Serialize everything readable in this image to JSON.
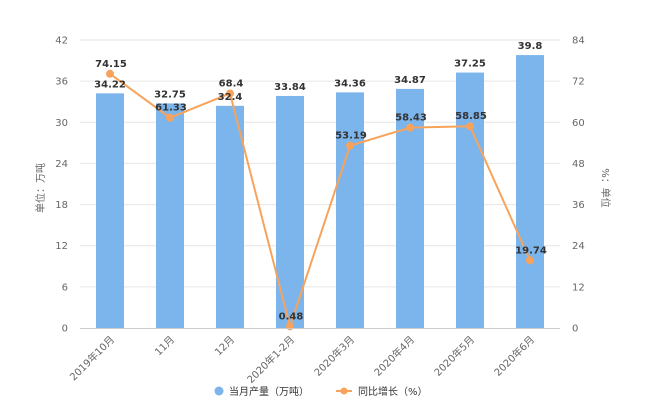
{
  "chart_data": {
    "type": "bar",
    "categories": [
      "2019年10月",
      "11月",
      "12月",
      "2020年1-2月",
      "2020年3月",
      "2020年4月",
      "2020年5月",
      "2020年6月"
    ],
    "series": [
      {
        "name": "当月产量（万吨）",
        "type": "bar",
        "axis": "left",
        "color": "#7cb5ec",
        "values": [
          34.22,
          32.75,
          32.4,
          33.84,
          34.36,
          34.87,
          37.25,
          39.8
        ]
      },
      {
        "name": "同比增长（%）",
        "type": "line",
        "axis": "right",
        "color": "#f7a35c",
        "values": [
          74.15,
          61.33,
          68.4,
          0.48,
          53.19,
          58.43,
          58.85,
          19.74
        ]
      }
    ],
    "ylabel": "单位：万吨",
    "y2label": "%：单位",
    "ylim": [
      0,
      42
    ],
    "y2lim": [
      0,
      84
    ],
    "yticks": [
      "0",
      "6",
      "12",
      "18",
      "24",
      "30",
      "36",
      "42"
    ],
    "y2ticks": [
      "0",
      "12",
      "24",
      "36",
      "48",
      "60",
      "72",
      "84"
    ],
    "legend_position": "bottom",
    "grid": true
  }
}
